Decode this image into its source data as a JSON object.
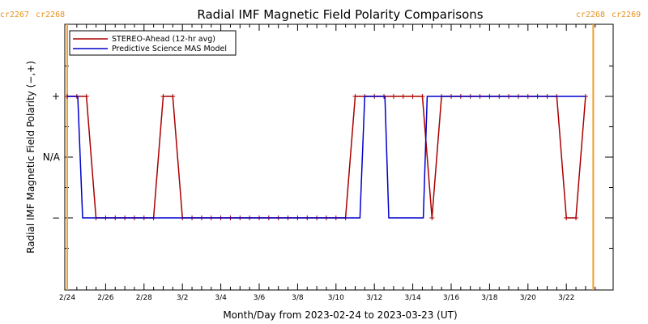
{
  "chart_data": {
    "type": "line",
    "title": "Radial IMF Magnetic Field Polarity Comparisons",
    "xlabel": "Month/Day from 2023-02-24 to 2023-03-23 (UT)",
    "ylabel": "Radial IMF Magnetic Field Polarity (−,+)",
    "xlim": [
      0,
      27.6
    ],
    "ylim": [
      -2,
      2
    ],
    "x_ticks": [
      {
        "x": 0,
        "label": "2/24"
      },
      {
        "x": 2,
        "label": "2/26"
      },
      {
        "x": 4,
        "label": "2/28"
      },
      {
        "x": 6,
        "label": "3/2"
      },
      {
        "x": 8,
        "label": "3/4"
      },
      {
        "x": 10,
        "label": "3/6"
      },
      {
        "x": 12,
        "label": "3/8"
      },
      {
        "x": 14,
        "label": "3/10"
      },
      {
        "x": 16,
        "label": "3/12"
      },
      {
        "x": 18,
        "label": "3/14"
      },
      {
        "x": 20,
        "label": "3/16"
      },
      {
        "x": 22,
        "label": "3/18"
      },
      {
        "x": 24,
        "label": "3/20"
      },
      {
        "x": 26,
        "label": "3/22"
      }
    ],
    "y_ticks": [
      {
        "y": 1,
        "label": "+"
      },
      {
        "y": 0,
        "label": "N/A"
      },
      {
        "y": -1,
        "label": "−"
      }
    ],
    "carrington_markers": [
      {
        "x": 0,
        "left_label": "cr2267",
        "right_label": "cr2268"
      },
      {
        "x": 27.4,
        "left_label": "cr2268",
        "right_label": "cr2269"
      }
    ],
    "series": [
      {
        "name": "STEREO-Ahead (12-hr avg)",
        "color": "#aa0000",
        "marker": "+",
        "x": [
          0.0,
          0.5,
          1.0,
          1.5,
          2.0,
          2.5,
          3.0,
          3.5,
          4.0,
          4.5,
          5.0,
          5.5,
          6.0,
          6.5,
          7.0,
          7.5,
          8.0,
          8.5,
          9.0,
          9.5,
          10.0,
          10.5,
          11.0,
          11.5,
          12.0,
          12.5,
          13.0,
          13.5,
          14.0,
          14.5,
          15.0,
          15.5,
          16.0,
          16.5,
          17.0,
          17.5,
          18.0,
          18.5,
          19.0,
          19.5,
          20.0,
          20.5,
          21.0,
          21.5,
          22.0,
          22.5,
          23.0,
          23.5,
          24.0,
          24.5,
          25.0,
          25.5,
          26.0,
          26.5,
          27.0
        ],
        "values": [
          1,
          1,
          1,
          -1,
          -1,
          -1,
          -1,
          -1,
          -1,
          -1,
          1,
          1,
          -1,
          -1,
          -1,
          -1,
          -1,
          -1,
          -1,
          -1,
          -1,
          -1,
          -1,
          -1,
          -1,
          -1,
          -1,
          -1,
          -1,
          -1,
          1,
          1,
          1,
          1,
          1,
          1,
          1,
          1,
          -1,
          1,
          1,
          1,
          1,
          1,
          1,
          1,
          1,
          1,
          1,
          1,
          1,
          1,
          -1,
          -1,
          1
        ]
      },
      {
        "name": "Predictive Science MAS Model",
        "color": "#0000cc",
        "marker": "none",
        "x": [
          0.0,
          0.55,
          0.8,
          15.25,
          15.5,
          16.55,
          16.75,
          18.55,
          18.75,
          27.0
        ],
        "values": [
          1,
          1,
          -1,
          -1,
          1,
          1,
          -1,
          -1,
          1,
          1
        ]
      }
    ],
    "legend_position": "top-left",
    "grid": false
  }
}
